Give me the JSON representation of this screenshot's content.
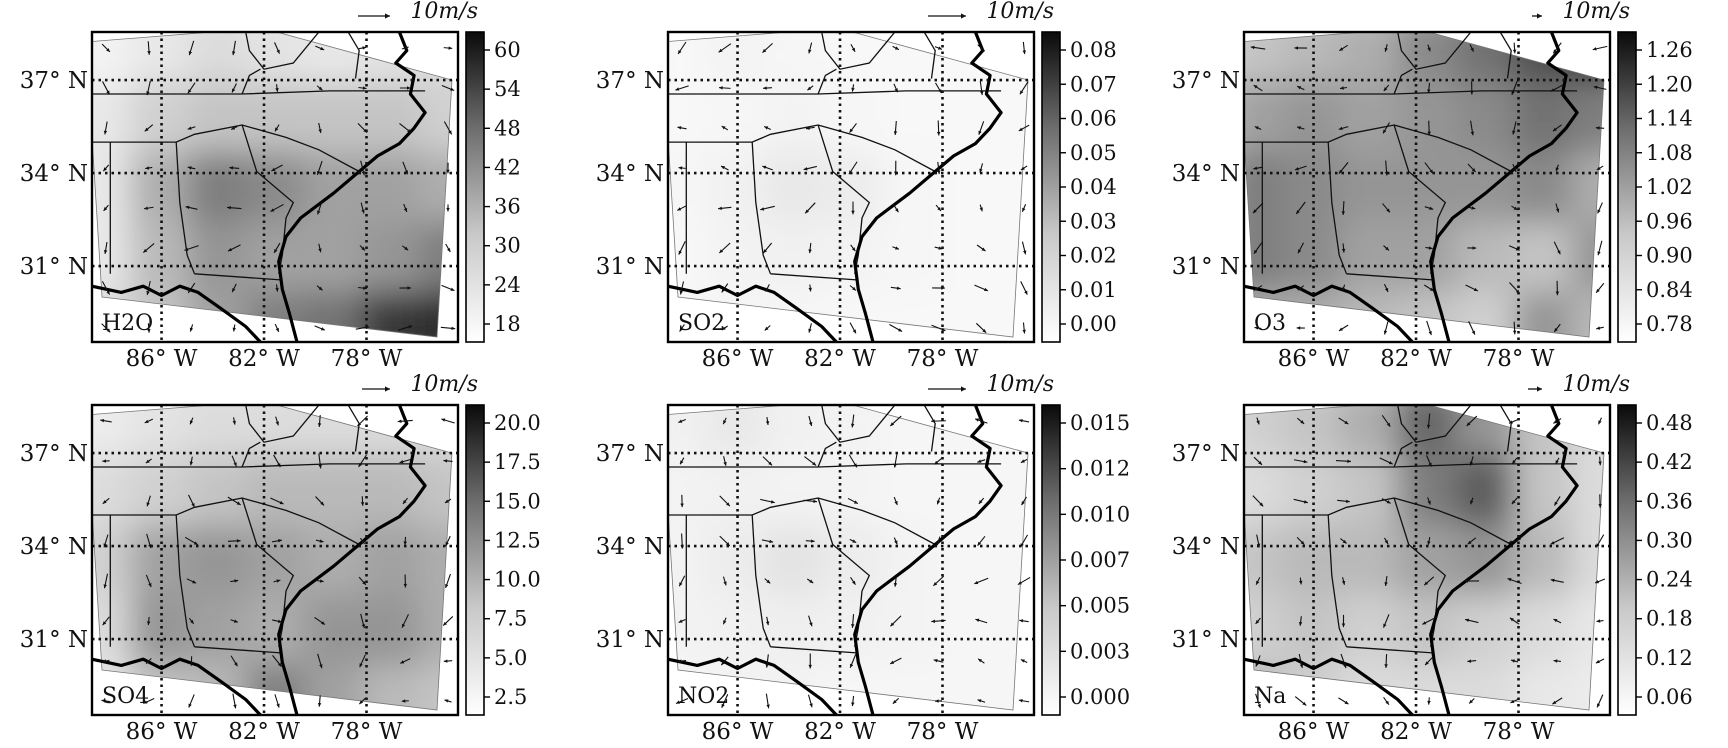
{
  "figure": {
    "vector_scale_label": "10m/s",
    "lat_ticks": [
      "37° N",
      "34° N",
      "31° N"
    ],
    "lon_ticks": [
      "86° W",
      "82° W",
      "78° W"
    ]
  },
  "panels": [
    {
      "label": "H2O",
      "colorbar": {
        "ticks": [
          "60",
          "54",
          "48",
          "42",
          "36",
          "30",
          "24",
          "18"
        ]
      },
      "field": [
        [
          0.05,
          0.1,
          0.15,
          0.12,
          0.1,
          0.12,
          0.15
        ],
        [
          0.1,
          0.2,
          0.25,
          0.25,
          0.25,
          0.25,
          0.2
        ],
        [
          0.1,
          0.35,
          0.55,
          0.5,
          0.4,
          0.4,
          0.35
        ],
        [
          0.1,
          0.3,
          0.45,
          0.4,
          0.4,
          0.45,
          0.55
        ],
        [
          0.15,
          0.25,
          0.4,
          0.55,
          0.6,
          0.85,
          0.9
        ]
      ]
    },
    {
      "label": "SO2",
      "colorbar": {
        "ticks": [
          "0.08",
          "0.07",
          "0.06",
          "0.05",
          "0.04",
          "0.03",
          "0.02",
          "0.01",
          "0.00"
        ]
      },
      "field": [
        [
          0.03,
          0.05,
          0.04,
          0.03,
          0.03,
          0.03,
          0.03
        ],
        [
          0.03,
          0.04,
          0.05,
          0.04,
          0.03,
          0.03,
          0.03
        ],
        [
          0.04,
          0.06,
          0.1,
          0.08,
          0.04,
          0.03,
          0.03
        ],
        [
          0.03,
          0.05,
          0.06,
          0.05,
          0.04,
          0.03,
          0.03
        ],
        [
          0.03,
          0.04,
          0.04,
          0.03,
          0.03,
          0.03,
          0.03
        ]
      ]
    },
    {
      "label": "O3",
      "colorbar": {
        "ticks": [
          "1.26",
          "1.20",
          "1.14",
          "1.08",
          "1.02",
          "0.96",
          "0.90",
          "0.84",
          "0.78"
        ]
      },
      "field": [
        [
          0.25,
          0.3,
          0.35,
          0.5,
          0.6,
          0.75,
          0.85
        ],
        [
          0.4,
          0.45,
          0.4,
          0.45,
          0.5,
          0.6,
          0.55
        ],
        [
          0.55,
          0.5,
          0.45,
          0.45,
          0.45,
          0.5,
          0.35
        ],
        [
          0.55,
          0.5,
          0.4,
          0.4,
          0.3,
          0.25,
          0.45
        ],
        [
          0.35,
          0.35,
          0.3,
          0.25,
          0.2,
          0.45,
          0.3
        ]
      ]
    },
    {
      "label": "SO4",
      "colorbar": {
        "ticks": [
          "20.0",
          "17.5",
          "15.0",
          "12.5",
          "10.0",
          "7.5",
          "5.0",
          "2.5"
        ]
      },
      "field": [
        [
          0.08,
          0.12,
          0.15,
          0.15,
          0.15,
          0.15,
          0.15
        ],
        [
          0.15,
          0.2,
          0.25,
          0.3,
          0.3,
          0.3,
          0.25
        ],
        [
          0.2,
          0.4,
          0.45,
          0.4,
          0.35,
          0.4,
          0.35
        ],
        [
          0.15,
          0.45,
          0.4,
          0.35,
          0.45,
          0.45,
          0.35
        ],
        [
          0.1,
          0.25,
          0.3,
          0.55,
          0.4,
          0.3,
          0.25
        ]
      ]
    },
    {
      "label": "NO2",
      "colorbar": {
        "ticks": [
          "0.015",
          "0.012",
          "0.010",
          "0.007",
          "0.005",
          "0.003",
          "0.000"
        ]
      },
      "field": [
        [
          0.06,
          0.1,
          0.06,
          0.05,
          0.04,
          0.04,
          0.04
        ],
        [
          0.05,
          0.06,
          0.05,
          0.05,
          0.04,
          0.04,
          0.04
        ],
        [
          0.05,
          0.08,
          0.12,
          0.08,
          0.05,
          0.04,
          0.04
        ],
        [
          0.05,
          0.06,
          0.07,
          0.06,
          0.05,
          0.04,
          0.04
        ],
        [
          0.04,
          0.05,
          0.05,
          0.04,
          0.04,
          0.04,
          0.04
        ]
      ]
    },
    {
      "label": "Na",
      "colorbar": {
        "ticks": [
          "0.48",
          "0.42",
          "0.36",
          "0.30",
          "0.24",
          "0.18",
          "0.12",
          "0.06"
        ]
      },
      "field": [
        [
          0.2,
          0.25,
          0.35,
          0.65,
          0.45,
          0.25,
          0.15
        ],
        [
          0.15,
          0.2,
          0.25,
          0.55,
          0.7,
          0.25,
          0.15
        ],
        [
          0.25,
          0.3,
          0.3,
          0.4,
          0.45,
          0.3,
          0.15
        ],
        [
          0.2,
          0.25,
          0.2,
          0.25,
          0.2,
          0.15,
          0.1
        ],
        [
          0.3,
          0.2,
          0.15,
          0.15,
          0.15,
          0.1,
          0.08
        ]
      ]
    }
  ]
}
